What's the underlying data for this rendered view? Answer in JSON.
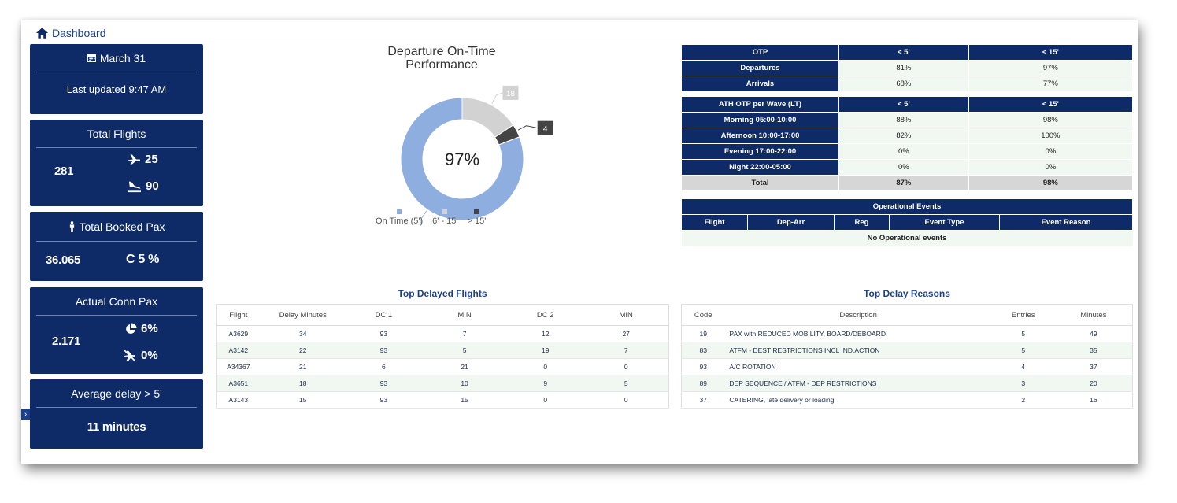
{
  "breadcrumb": {
    "label": "Dashboard"
  },
  "date_card": {
    "date": "March 31",
    "last_updated": "Last updated 9:47 AM"
  },
  "flights_card": {
    "title": "Total Flights",
    "total": "281",
    "departures": "25",
    "arrivals": "90"
  },
  "pax_card": {
    "title": "Total Booked Pax",
    "total": "36.065",
    "connecting": "C 5 %"
  },
  "conn_card": {
    "title": "Actual Conn Pax",
    "total": "2.171",
    "pct_on": "6%",
    "pct_missed": "0%"
  },
  "delay_card": {
    "title": "Average delay > 5'",
    "value": "11 minutes"
  },
  "chart_data": {
    "type": "pie",
    "title": "Departure On-Time Performance",
    "center_label": "97%",
    "categories": [
      "On Time (5')",
      "6' - 15'",
      "> 15'"
    ],
    "values": [
      93,
      18,
      4
    ],
    "colors": [
      "#8eaee0",
      "#d2d2d2",
      "#444444"
    ],
    "legend": "bottom"
  },
  "otp_table": {
    "headers": [
      "OTP",
      "< 5'",
      "< 15'"
    ],
    "rows": [
      {
        "label": "Departures",
        "v5": "81%",
        "v15": "97%"
      },
      {
        "label": "Arrivals",
        "v5": "68%",
        "v15": "77%"
      }
    ],
    "wave_headers": [
      "ATH OTP per Wave (LT)",
      "< 5'",
      "< 15'"
    ],
    "wave_rows": [
      {
        "label": "Morning 05:00-10:00",
        "v5": "88%",
        "v15": "98%"
      },
      {
        "label": "Afternoon 10:00-17:00",
        "v5": "82%",
        "v15": "100%"
      },
      {
        "label": "Evening 17:00-22:00",
        "v5": "0%",
        "v15": "0%"
      },
      {
        "label": "Night 22:00-05:00",
        "v5": "0%",
        "v15": "0%"
      }
    ],
    "total": {
      "label": "Total",
      "v5": "87%",
      "v15": "98%"
    }
  },
  "ops_events": {
    "title": "Operational Events",
    "headers": [
      "Flight",
      "Dep-Arr",
      "Reg",
      "Event Type",
      "Event Reason"
    ],
    "empty": "No Operational events"
  },
  "top_delayed": {
    "title": "Top Delayed Flights",
    "headers": [
      "Flight",
      "Delay Minutes",
      "DC 1",
      "MIN",
      "DC 2",
      "MIN"
    ],
    "rows": [
      [
        "A3629",
        "34",
        "93",
        "7",
        "12",
        "27"
      ],
      [
        "A3142",
        "22",
        "93",
        "5",
        "19",
        "7"
      ],
      [
        "A34367",
        "21",
        "6",
        "21",
        "0",
        "0"
      ],
      [
        "A3651",
        "18",
        "93",
        "10",
        "9",
        "5"
      ],
      [
        "A3143",
        "15",
        "93",
        "15",
        "0",
        "0"
      ]
    ]
  },
  "top_reasons": {
    "title": "Top Delay Reasons",
    "headers": [
      "Code",
      "Description",
      "Entries",
      "Minutes"
    ],
    "rows": [
      [
        "19",
        "PAX with REDUCED MOBILITY, BOARD/DEBOARD",
        "5",
        "49"
      ],
      [
        "83",
        "ATFM - DEST RESTRICTIONS INCL IND.ACTION",
        "5",
        "35"
      ],
      [
        "93",
        "A/C ROTATION",
        "4",
        "37"
      ],
      [
        "89",
        "DEP SEQUENCE / ATFM - DEP RESTRICTIONS",
        "3",
        "20"
      ],
      [
        "37",
        "CATERING, late delivery or loading",
        "2",
        "16"
      ]
    ]
  }
}
